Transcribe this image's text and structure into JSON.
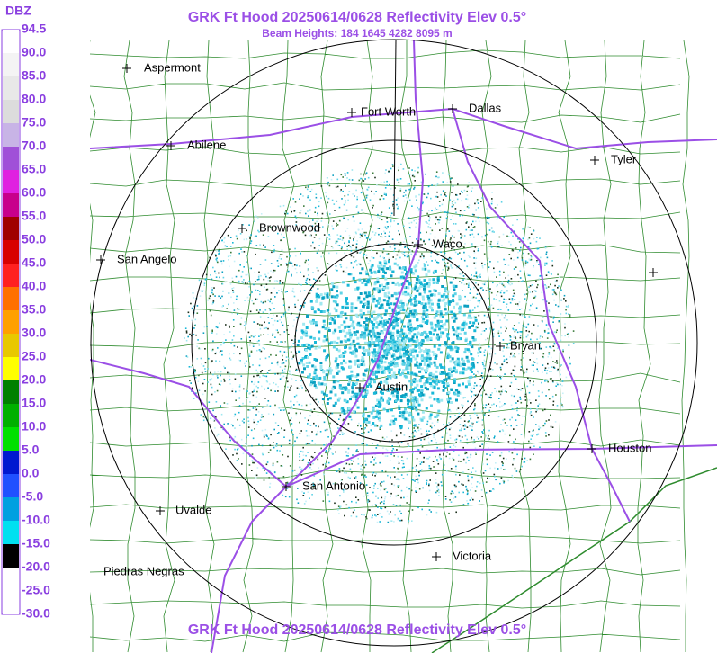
{
  "header": {
    "title": "GRK Ft Hood 20250614/0628 Reflectivity Elev 0.5°",
    "subtitle": "Beam Heights: 184 1645 4282 8095 m",
    "footer": "GRK Ft Hood 20250614/0628 Reflectivity Elev 0.5°"
  },
  "legend": {
    "unit": "DBZ",
    "labels": [
      "94.5",
      "90.0",
      "85.0",
      "80.0",
      "75.0",
      "70.0",
      "65.0",
      "60.0",
      "55.0",
      "50.0",
      "45.0",
      "40.0",
      "35.0",
      "30.0",
      "25.0",
      "20.0",
      "15.0",
      "10.0",
      "5.0",
      "0.0",
      "-5.0",
      "-10.0",
      "-15.0",
      "-20.0",
      "-25.0",
      "-30.0"
    ]
  },
  "cities": [
    {
      "name": "Aspermont"
    },
    {
      "name": "Fort Worth"
    },
    {
      "name": "Dallas"
    },
    {
      "name": "Abilene"
    },
    {
      "name": "Tyler"
    },
    {
      "name": "Brownwood"
    },
    {
      "name": "Waco"
    },
    {
      "name": "San Angelo"
    },
    {
      "name": "Bryan"
    },
    {
      "name": "Austin"
    },
    {
      "name": "Houston"
    },
    {
      "name": "San Antonio"
    },
    {
      "name": "Uvalde"
    },
    {
      "name": "Victoria"
    },
    {
      "name": "Piedras Negras"
    }
  ]
}
